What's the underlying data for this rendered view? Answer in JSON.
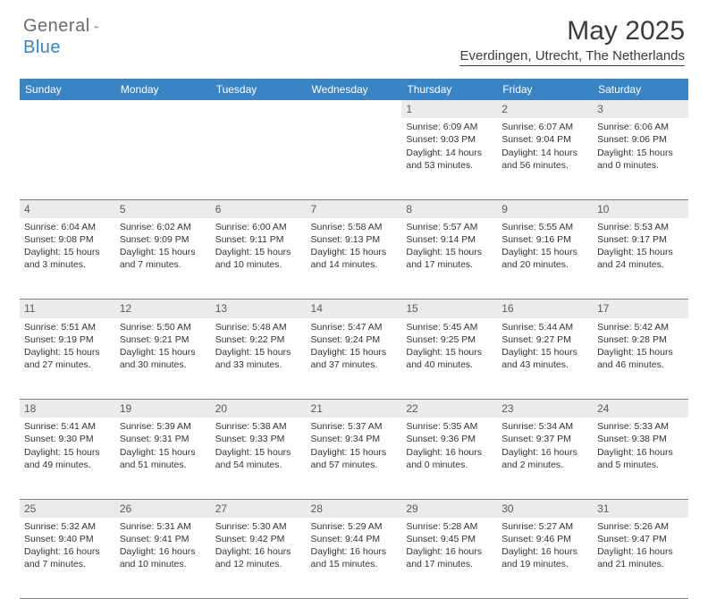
{
  "logo": {
    "part1": "General",
    "part2": "Blue"
  },
  "title": "May 2025",
  "location": "Everdingen, Utrecht, The Netherlands",
  "colors": {
    "headerBg": "#3a84c4",
    "headerText": "#ffffff",
    "dayBg": "#ebebeb",
    "bodyText": "#333333",
    "logoGray": "#6b6b6b",
    "logoBlue": "#3a84c4",
    "ruleColor": "#7a7a7a"
  },
  "weekdays": [
    "Sunday",
    "Monday",
    "Tuesday",
    "Wednesday",
    "Thursday",
    "Friday",
    "Saturday"
  ],
  "weeks": [
    [
      null,
      null,
      null,
      null,
      {
        "n": "1",
        "sr": "Sunrise: 6:09 AM",
        "ss": "Sunset: 9:03 PM",
        "dl": "Daylight: 14 hours and 53 minutes."
      },
      {
        "n": "2",
        "sr": "Sunrise: 6:07 AM",
        "ss": "Sunset: 9:04 PM",
        "dl": "Daylight: 14 hours and 56 minutes."
      },
      {
        "n": "3",
        "sr": "Sunrise: 6:06 AM",
        "ss": "Sunset: 9:06 PM",
        "dl": "Daylight: 15 hours and 0 minutes."
      }
    ],
    [
      {
        "n": "4",
        "sr": "Sunrise: 6:04 AM",
        "ss": "Sunset: 9:08 PM",
        "dl": "Daylight: 15 hours and 3 minutes."
      },
      {
        "n": "5",
        "sr": "Sunrise: 6:02 AM",
        "ss": "Sunset: 9:09 PM",
        "dl": "Daylight: 15 hours and 7 minutes."
      },
      {
        "n": "6",
        "sr": "Sunrise: 6:00 AM",
        "ss": "Sunset: 9:11 PM",
        "dl": "Daylight: 15 hours and 10 minutes."
      },
      {
        "n": "7",
        "sr": "Sunrise: 5:58 AM",
        "ss": "Sunset: 9:13 PM",
        "dl": "Daylight: 15 hours and 14 minutes."
      },
      {
        "n": "8",
        "sr": "Sunrise: 5:57 AM",
        "ss": "Sunset: 9:14 PM",
        "dl": "Daylight: 15 hours and 17 minutes."
      },
      {
        "n": "9",
        "sr": "Sunrise: 5:55 AM",
        "ss": "Sunset: 9:16 PM",
        "dl": "Daylight: 15 hours and 20 minutes."
      },
      {
        "n": "10",
        "sr": "Sunrise: 5:53 AM",
        "ss": "Sunset: 9:17 PM",
        "dl": "Daylight: 15 hours and 24 minutes."
      }
    ],
    [
      {
        "n": "11",
        "sr": "Sunrise: 5:51 AM",
        "ss": "Sunset: 9:19 PM",
        "dl": "Daylight: 15 hours and 27 minutes."
      },
      {
        "n": "12",
        "sr": "Sunrise: 5:50 AM",
        "ss": "Sunset: 9:21 PM",
        "dl": "Daylight: 15 hours and 30 minutes."
      },
      {
        "n": "13",
        "sr": "Sunrise: 5:48 AM",
        "ss": "Sunset: 9:22 PM",
        "dl": "Daylight: 15 hours and 33 minutes."
      },
      {
        "n": "14",
        "sr": "Sunrise: 5:47 AM",
        "ss": "Sunset: 9:24 PM",
        "dl": "Daylight: 15 hours and 37 minutes."
      },
      {
        "n": "15",
        "sr": "Sunrise: 5:45 AM",
        "ss": "Sunset: 9:25 PM",
        "dl": "Daylight: 15 hours and 40 minutes."
      },
      {
        "n": "16",
        "sr": "Sunrise: 5:44 AM",
        "ss": "Sunset: 9:27 PM",
        "dl": "Daylight: 15 hours and 43 minutes."
      },
      {
        "n": "17",
        "sr": "Sunrise: 5:42 AM",
        "ss": "Sunset: 9:28 PM",
        "dl": "Daylight: 15 hours and 46 minutes."
      }
    ],
    [
      {
        "n": "18",
        "sr": "Sunrise: 5:41 AM",
        "ss": "Sunset: 9:30 PM",
        "dl": "Daylight: 15 hours and 49 minutes."
      },
      {
        "n": "19",
        "sr": "Sunrise: 5:39 AM",
        "ss": "Sunset: 9:31 PM",
        "dl": "Daylight: 15 hours and 51 minutes."
      },
      {
        "n": "20",
        "sr": "Sunrise: 5:38 AM",
        "ss": "Sunset: 9:33 PM",
        "dl": "Daylight: 15 hours and 54 minutes."
      },
      {
        "n": "21",
        "sr": "Sunrise: 5:37 AM",
        "ss": "Sunset: 9:34 PM",
        "dl": "Daylight: 15 hours and 57 minutes."
      },
      {
        "n": "22",
        "sr": "Sunrise: 5:35 AM",
        "ss": "Sunset: 9:36 PM",
        "dl": "Daylight: 16 hours and 0 minutes."
      },
      {
        "n": "23",
        "sr": "Sunrise: 5:34 AM",
        "ss": "Sunset: 9:37 PM",
        "dl": "Daylight: 16 hours and 2 minutes."
      },
      {
        "n": "24",
        "sr": "Sunrise: 5:33 AM",
        "ss": "Sunset: 9:38 PM",
        "dl": "Daylight: 16 hours and 5 minutes."
      }
    ],
    [
      {
        "n": "25",
        "sr": "Sunrise: 5:32 AM",
        "ss": "Sunset: 9:40 PM",
        "dl": "Daylight: 16 hours and 7 minutes."
      },
      {
        "n": "26",
        "sr": "Sunrise: 5:31 AM",
        "ss": "Sunset: 9:41 PM",
        "dl": "Daylight: 16 hours and 10 minutes."
      },
      {
        "n": "27",
        "sr": "Sunrise: 5:30 AM",
        "ss": "Sunset: 9:42 PM",
        "dl": "Daylight: 16 hours and 12 minutes."
      },
      {
        "n": "28",
        "sr": "Sunrise: 5:29 AM",
        "ss": "Sunset: 9:44 PM",
        "dl": "Daylight: 16 hours and 15 minutes."
      },
      {
        "n": "29",
        "sr": "Sunrise: 5:28 AM",
        "ss": "Sunset: 9:45 PM",
        "dl": "Daylight: 16 hours and 17 minutes."
      },
      {
        "n": "30",
        "sr": "Sunrise: 5:27 AM",
        "ss": "Sunset: 9:46 PM",
        "dl": "Daylight: 16 hours and 19 minutes."
      },
      {
        "n": "31",
        "sr": "Sunrise: 5:26 AM",
        "ss": "Sunset: 9:47 PM",
        "dl": "Daylight: 16 hours and 21 minutes."
      }
    ]
  ]
}
